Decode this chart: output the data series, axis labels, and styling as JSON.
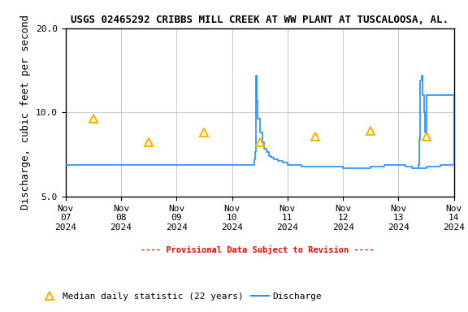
{
  "title": "USGS 02465292 CRIBBS MILL CREEK AT WW PLANT AT TUSCALOOSA, AL.",
  "ylabel": "Discharge, cubic feet per second",
  "ylim_log": [
    5.0,
    20.0
  ],
  "yticks": [
    5.0,
    10.0,
    20.0
  ],
  "background_color": "#ffffff",
  "grid_color": "#cccccc",
  "discharge_color": "#1E90FF",
  "median_color": "#FFB300",
  "provisional_color": "#FF0000",
  "title_fontsize": 9,
  "axis_fontsize": 9,
  "tick_fontsize": 8,
  "discharge_times": [
    "2024-11-07 00:00",
    "2024-11-07 06:00",
    "2024-11-07 12:00",
    "2024-11-07 18:00",
    "2024-11-08 00:00",
    "2024-11-08 06:00",
    "2024-11-08 12:00",
    "2024-11-08 18:00",
    "2024-11-09 00:00",
    "2024-11-09 06:00",
    "2024-11-09 12:00",
    "2024-11-09 18:00",
    "2024-11-10 00:00",
    "2024-11-10 09:00",
    "2024-11-10 09:15",
    "2024-11-10 09:30",
    "2024-11-10 09:45",
    "2024-11-10 10:00",
    "2024-11-10 10:15",
    "2024-11-10 10:30",
    "2024-11-10 10:45",
    "2024-11-10 11:00",
    "2024-11-10 12:00",
    "2024-11-10 13:00",
    "2024-11-10 14:00",
    "2024-11-10 15:00",
    "2024-11-10 16:00",
    "2024-11-10 17:00",
    "2024-11-10 18:00",
    "2024-11-10 20:00",
    "2024-11-10 22:00",
    "2024-11-11 00:00",
    "2024-11-11 03:00",
    "2024-11-11 06:00",
    "2024-11-11 09:00",
    "2024-11-11 12:00",
    "2024-11-11 18:00",
    "2024-11-12 00:00",
    "2024-11-12 03:00",
    "2024-11-12 06:00",
    "2024-11-12 09:00",
    "2024-11-12 12:00",
    "2024-11-12 18:00",
    "2024-11-13 00:00",
    "2024-11-13 03:00",
    "2024-11-13 04:00",
    "2024-11-13 05:00",
    "2024-11-13 06:00",
    "2024-11-13 08:00",
    "2024-11-13 09:00",
    "2024-11-13 12:00",
    "2024-11-13 15:00",
    "2024-11-13 18:00",
    "2024-11-14 00:00"
  ],
  "discharge_values": [
    6.5,
    6.5,
    6.5,
    6.5,
    6.5,
    6.5,
    6.5,
    6.5,
    6.5,
    6.5,
    6.5,
    6.5,
    6.5,
    6.5,
    6.5,
    6.6,
    6.8,
    7.2,
    8.5,
    13.5,
    11.0,
    9.5,
    8.5,
    7.8,
    7.4,
    7.2,
    7.0,
    6.9,
    6.8,
    6.7,
    6.6,
    6.5,
    6.5,
    6.4,
    6.4,
    6.4,
    6.4,
    6.3,
    6.3,
    6.3,
    6.3,
    6.4,
    6.5,
    6.5,
    6.4,
    6.4,
    6.4,
    6.3,
    6.3,
    6.3,
    6.4,
    6.4,
    6.5,
    6.5
  ],
  "discharge2_times": [
    "2024-11-13 08:30",
    "2024-11-13 08:45",
    "2024-11-13 09:00",
    "2024-11-13 09:15",
    "2024-11-13 09:30",
    "2024-11-13 10:00",
    "2024-11-13 10:30",
    "2024-11-13 11:00",
    "2024-11-13 11:30",
    "2024-11-13 12:00",
    "2024-11-14 00:00"
  ],
  "discharge2_values": [
    6.3,
    6.5,
    8.0,
    10.5,
    13.0,
    13.5,
    11.5,
    10.0,
    8.5,
    11.5,
    6.5
  ],
  "median_dates": [
    "2024-11-07",
    "2024-11-08",
    "2024-11-09",
    "2024-11-10",
    "2024-11-11",
    "2024-11-12",
    "2024-11-13",
    "2024-11-14"
  ],
  "median_values": [
    9.5,
    7.8,
    8.5,
    7.8,
    8.2,
    8.6,
    8.2,
    9.5
  ],
  "xmin": "2024-11-07 00:00",
  "xmax": "2024-11-14 00:00",
  "xtick_dates": [
    "2024-11-07",
    "2024-11-08",
    "2024-11-09",
    "2024-11-10",
    "2024-11-11",
    "2024-11-12",
    "2024-11-13",
    "2024-11-14"
  ],
  "xtick_labels": [
    "Nov\n07\n2024",
    "Nov\n08\n2024",
    "Nov\n09\n2024",
    "Nov\n10\n2024",
    "Nov\n11\n2024",
    "Nov\n12\n2024",
    "Nov\n13\n2024",
    "Nov\n14\n2024"
  ],
  "legend_provisional_text": "---- Provisional Data Subject to Revision ----",
  "legend_median_text": "Median daily statistic (22 years)",
  "legend_discharge_text": "Discharge",
  "font_family": "monospace"
}
